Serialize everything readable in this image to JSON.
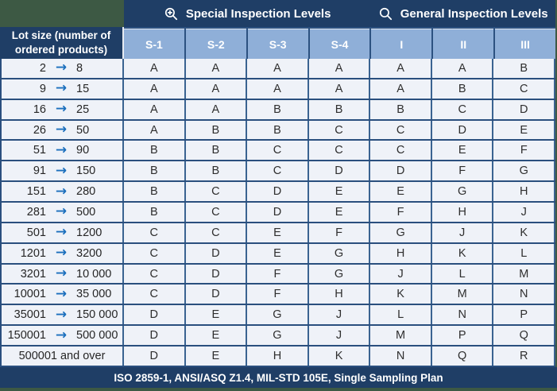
{
  "header": {
    "special_label": "Special Inspection Levels",
    "general_label": "General Inspection Levels"
  },
  "table": {
    "lot_header": "Lot size (number of ordered products)",
    "columns": [
      "S-1",
      "S-2",
      "S-3",
      "S-4",
      "I",
      "II",
      "III"
    ],
    "rows": [
      {
        "from": "2",
        "to": "8",
        "levels": [
          "A",
          "A",
          "A",
          "A",
          "A",
          "A",
          "B"
        ]
      },
      {
        "from": "9",
        "to": "15",
        "levels": [
          "A",
          "A",
          "A",
          "A",
          "A",
          "B",
          "C"
        ]
      },
      {
        "from": "16",
        "to": "25",
        "levels": [
          "A",
          "A",
          "B",
          "B",
          "B",
          "C",
          "D"
        ]
      },
      {
        "from": "26",
        "to": "50",
        "levels": [
          "A",
          "B",
          "B",
          "C",
          "C",
          "D",
          "E"
        ]
      },
      {
        "from": "51",
        "to": "90",
        "levels": [
          "B",
          "B",
          "C",
          "C",
          "C",
          "E",
          "F"
        ]
      },
      {
        "from": "91",
        "to": "150",
        "levels": [
          "B",
          "B",
          "C",
          "D",
          "D",
          "F",
          "G"
        ]
      },
      {
        "from": "151",
        "to": "280",
        "levels": [
          "B",
          "C",
          "D",
          "E",
          "E",
          "G",
          "H"
        ]
      },
      {
        "from": "281",
        "to": "500",
        "levels": [
          "B",
          "C",
          "D",
          "E",
          "F",
          "H",
          "J"
        ]
      },
      {
        "from": "501",
        "to": "1200",
        "levels": [
          "C",
          "C",
          "E",
          "F",
          "G",
          "J",
          "K"
        ]
      },
      {
        "from": "1201",
        "to": "3200",
        "levels": [
          "C",
          "D",
          "E",
          "G",
          "H",
          "K",
          "L"
        ]
      },
      {
        "from": "3201",
        "to": "10 000",
        "levels": [
          "C",
          "D",
          "F",
          "G",
          "J",
          "L",
          "M"
        ]
      },
      {
        "from": "10001",
        "to": "35 000",
        "levels": [
          "C",
          "D",
          "F",
          "H",
          "K",
          "M",
          "N"
        ]
      },
      {
        "from": "35001",
        "to": "150 000",
        "levels": [
          "D",
          "E",
          "G",
          "J",
          "L",
          "N",
          "P"
        ]
      },
      {
        "from": "150001",
        "to": "500 000",
        "levels": [
          "D",
          "E",
          "G",
          "J",
          "M",
          "P",
          "Q"
        ]
      },
      {
        "from": "500001 and over",
        "to": null,
        "levels": [
          "D",
          "E",
          "H",
          "K",
          "N",
          "Q",
          "R"
        ]
      }
    ]
  },
  "footer": {
    "text": "ISO 2859-1, ANSI/ASQ Z1.4, MIL-STD 105E, Single Sampling Plan"
  },
  "icons": {
    "special": "zoom-in-icon",
    "general": "search-icon"
  },
  "colors": {
    "navy": "#1F3E66",
    "column_header_blue": "#8FAFD8",
    "row_background": "#EFF2F8",
    "frame_green": "#3D5944",
    "arrow_blue": "#1B6FBD",
    "grid_border": "#2A4F7E"
  }
}
